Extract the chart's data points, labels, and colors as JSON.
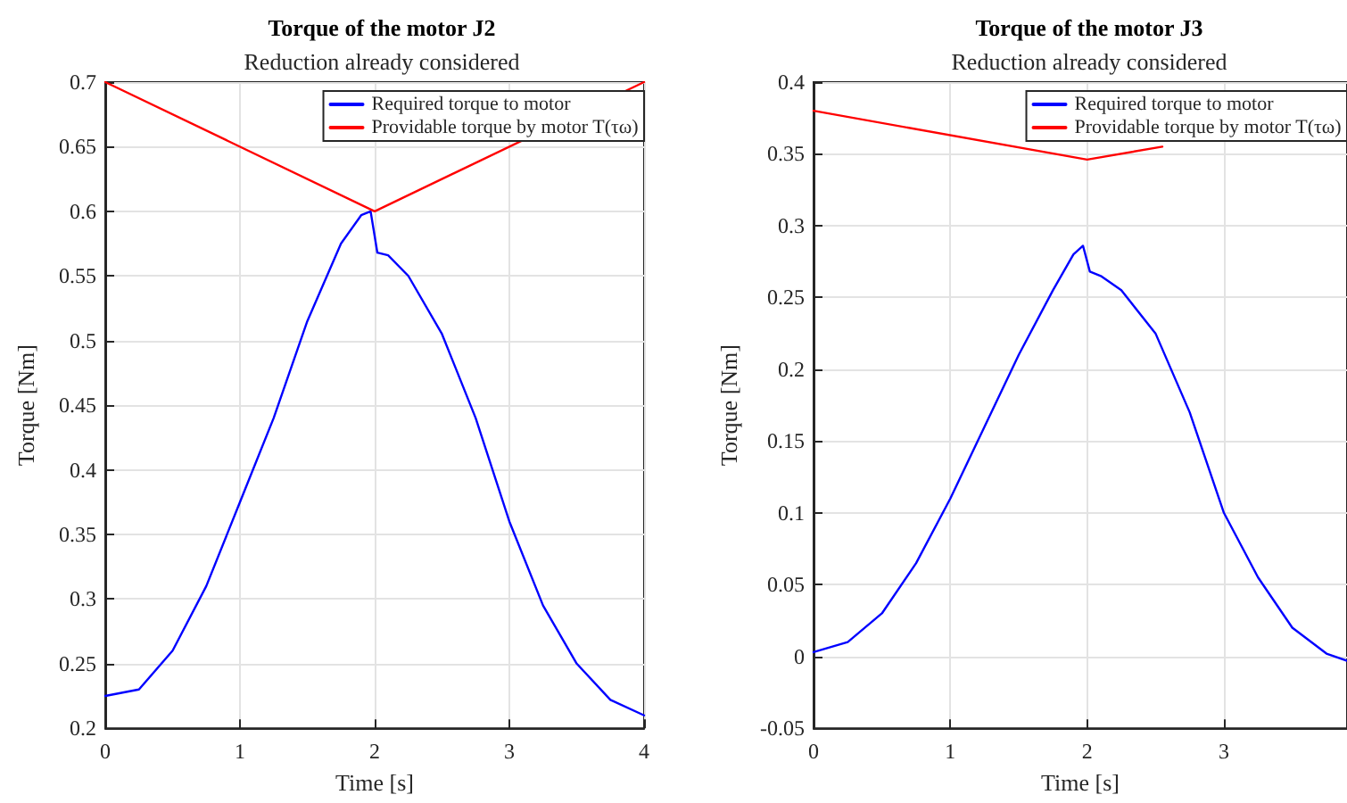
{
  "chart_data": [
    {
      "type": "line",
      "title": "Torque of the motor J2",
      "subtitle": "Reduction already considered",
      "xlabel": "Time [s]",
      "ylabel": "Torque [Nm]",
      "xlim": [
        0,
        4
      ],
      "ylim": [
        0.2,
        0.7
      ],
      "xticks": [
        0,
        1,
        2,
        3,
        4
      ],
      "yticks": [
        0.2,
        0.25,
        0.3,
        0.35,
        0.4,
        0.45,
        0.5,
        0.55,
        0.6,
        0.65,
        0.7
      ],
      "grid": true,
      "legend": "top right",
      "series": [
        {
          "name": "Required torque to motor",
          "color": "#0000ff",
          "x": [
            0,
            0.25,
            0.5,
            0.75,
            1,
            1.25,
            1.5,
            1.75,
            1.9,
            1.97,
            2.02,
            2.1,
            2.25,
            2.5,
            2.75,
            3,
            3.25,
            3.5,
            3.75,
            4
          ],
          "values": [
            0.225,
            0.23,
            0.26,
            0.31,
            0.375,
            0.44,
            0.515,
            0.575,
            0.597,
            0.6,
            0.568,
            0.566,
            0.55,
            0.505,
            0.44,
            0.36,
            0.295,
            0.25,
            0.222,
            0.21
          ]
        },
        {
          "name": "Providable torque by motor T(τω)",
          "color": "#ff0000",
          "x": [
            0,
            2,
            4
          ],
          "values": [
            0.7,
            0.6,
            0.7
          ]
        }
      ]
    },
    {
      "type": "line",
      "title": "Torque of the motor J3",
      "subtitle": "Reduction already considered",
      "xlabel": "Time [s]",
      "ylabel": "Torque [Nm]",
      "xlim": [
        0,
        3.9
      ],
      "ylim": [
        -0.05,
        0.4
      ],
      "xticks": [
        0,
        1,
        2,
        3
      ],
      "yticks": [
        -0.05,
        0,
        0.05,
        0.1,
        0.15,
        0.2,
        0.25,
        0.3,
        0.35,
        0.4
      ],
      "grid": true,
      "legend": "top right",
      "series": [
        {
          "name": "Required torque to motor",
          "color": "#0000ff",
          "x": [
            0,
            0.25,
            0.5,
            0.75,
            1,
            1.25,
            1.5,
            1.75,
            1.9,
            1.97,
            2.02,
            2.1,
            2.25,
            2.5,
            2.75,
            3,
            3.25,
            3.5,
            3.75,
            3.9
          ],
          "values": [
            0.003,
            0.01,
            0.03,
            0.065,
            0.11,
            0.16,
            0.21,
            0.255,
            0.28,
            0.286,
            0.268,
            0.265,
            0.255,
            0.225,
            0.17,
            0.1,
            0.055,
            0.02,
            0.002,
            -0.003
          ]
        },
        {
          "name": "Providable torque by motor T(τω)",
          "color": "#ff0000",
          "x": [
            0,
            2,
            2.55
          ],
          "values": [
            0.38,
            0.346,
            0.355
          ]
        }
      ]
    }
  ]
}
